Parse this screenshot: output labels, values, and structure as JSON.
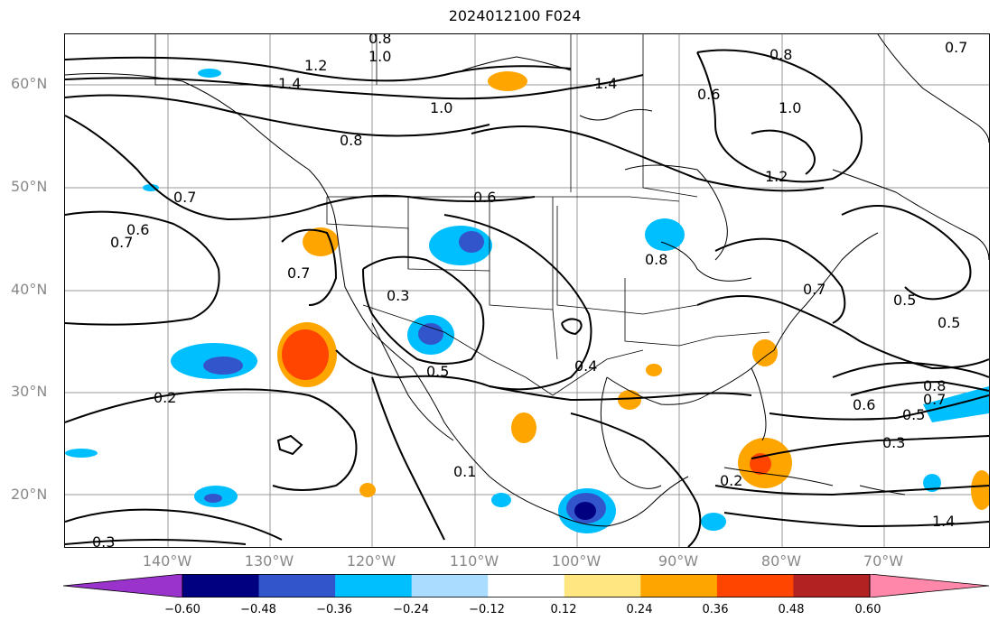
{
  "title": "2024012100 F024",
  "lat_labels": [
    "60°N",
    "50°N",
    "40°N",
    "30°N",
    "20°N"
  ],
  "lon_labels": [
    "140°W",
    "130°W",
    "120°W",
    "110°W",
    "100°W",
    "90°W",
    "80°W",
    "70°W"
  ],
  "contour_labels": [
    "0.8",
    "1.0",
    "1.2",
    "1.4",
    "1.0",
    "0.8",
    "1.4",
    "0.6",
    "0.8",
    "0.7",
    "1.0",
    "1.2",
    "0.6",
    "0.7",
    "0.7",
    "0.6",
    "0.7",
    "0.3",
    "0.5",
    "0.4",
    "0.8",
    "0.7",
    "0.5",
    "0.5",
    "0.2",
    "0.1",
    "0.2",
    "0.6",
    "0.5",
    "0.3",
    "0.8",
    "0.7",
    "0.3",
    "1.4"
  ],
  "colorbar": {
    "colors": [
      "#9933cc",
      "#000080",
      "#3355cc",
      "#00bfff",
      "#aadcff",
      "#ffffff",
      "#ffe680",
      "#ffa500",
      "#ff4500",
      "#b22222",
      "#ff88aa"
    ],
    "ticks": [
      "−0.60",
      "−0.48",
      "−0.36",
      "−0.24",
      "−0.12",
      "0.12",
      "0.24",
      "0.36",
      "0.48",
      "0.60"
    ]
  }
}
